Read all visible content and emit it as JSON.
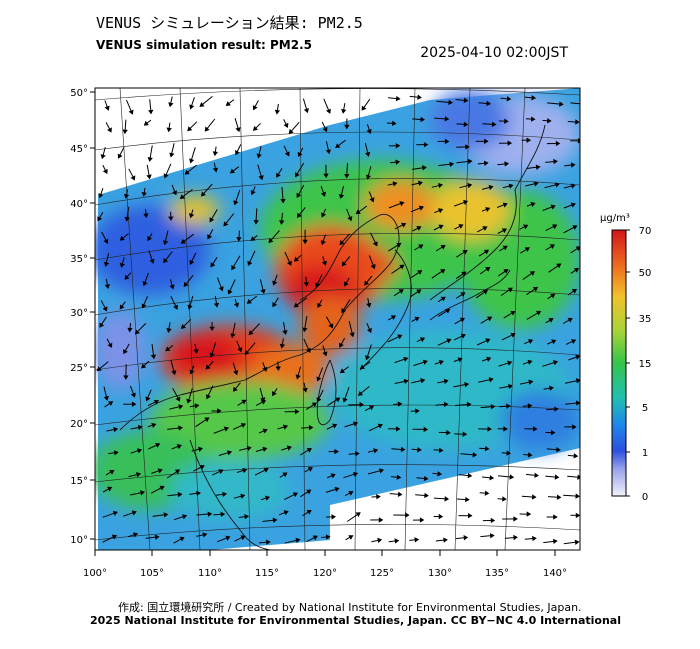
{
  "title_jp": "VENUS シミュレーション結果: PM2.5",
  "title_en": "VENUS simulation result: PM2.5",
  "datetime": "2025-04-10 02:00JST",
  "colorbar": {
    "unit": "μg/m³",
    "ticks": [
      "70",
      "50",
      "35",
      "15",
      "5",
      "1",
      "0"
    ],
    "colors": [
      "#d8141b",
      "#e85a1e",
      "#f2a92c",
      "#a7d338",
      "#35c44b",
      "#22c0b4",
      "#1e88e6",
      "#1f4ee0",
      "#8d9de8",
      "#f2f2fa"
    ]
  },
  "axes": {
    "lat_labels": [
      "50°",
      "45°",
      "40°",
      "35°",
      "30°",
      "25°",
      "20°",
      "15°",
      "10°"
    ],
    "lon_labels": [
      "100°",
      "105°",
      "110°",
      "115°",
      "120°",
      "125°",
      "130°",
      "135°",
      "140°"
    ]
  },
  "credit_line1": "作成: 国立環境研究所 / Created by National Institute for Environmental Studies, Japan.",
  "credit_line2": "2025 National Institute for Environmental Studies, Japan. CC BY−NC 4.0 International"
}
